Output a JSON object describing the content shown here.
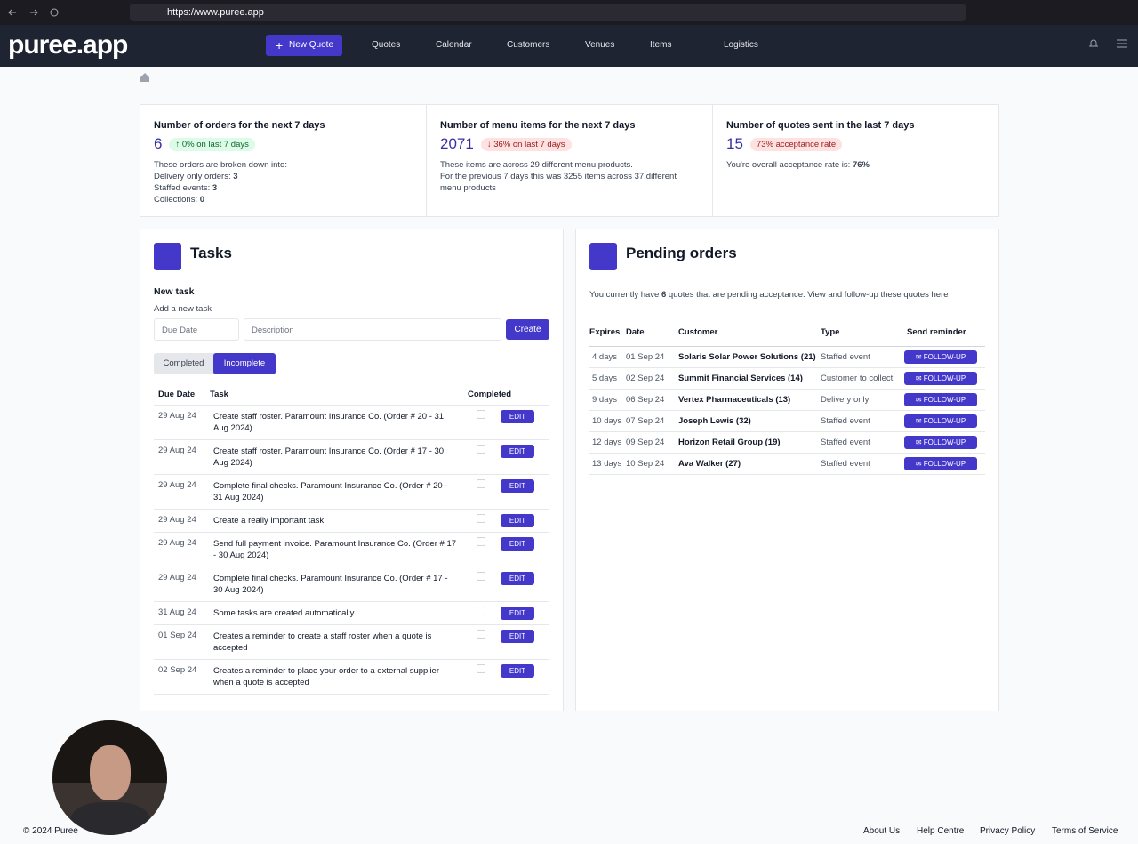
{
  "browser": {
    "url": "https://www.puree.app"
  },
  "nav": {
    "logo": "puree.app",
    "new_quote": "New Quote",
    "links": [
      "Quotes",
      "Calendar",
      "Customers",
      "Venues",
      "Items",
      "Logistics"
    ]
  },
  "stats": [
    {
      "title": "Number of orders for the next 7 days",
      "value": "6",
      "badge": "0% on last 7 days",
      "lines": [
        {
          "text": "These orders are broken down into:"
        },
        {
          "text": "Delivery only orders: ",
          "bold": "3"
        },
        {
          "text": "Staffed events: ",
          "bold": "3"
        },
        {
          "text": "Collections: ",
          "bold": "0"
        }
      ]
    },
    {
      "title": "Number of menu items for the next 7 days",
      "value": "2071",
      "badge": "36% on last 7 days",
      "lines": [
        {
          "text": "These items are across 29 different menu products."
        },
        {
          "text": "For the previous 7 days this was 3255 items across 37 different menu products"
        }
      ]
    },
    {
      "title": "Number of quotes sent in the last 7 days",
      "value": "15",
      "badge": "73% acceptance rate",
      "lines": [
        {
          "text": "You're overall acceptance rate is: ",
          "bold": "76%"
        }
      ]
    }
  ],
  "tasks": {
    "title": "Tasks",
    "new_task": "New task",
    "subtitle": "Add a new task",
    "due_placeholder": "Due Date",
    "desc_placeholder": "Description",
    "create": "Create",
    "tabs": [
      "Completed",
      "Incomplete"
    ],
    "columns": [
      "Due Date",
      "Task",
      "Completed"
    ],
    "edit": "EDIT",
    "rows": [
      [
        "29 Aug 24",
        "Create staff roster. Paramount Insurance Co. (Order # 20 - 31 Aug 2024)"
      ],
      [
        "29 Aug 24",
        "Create staff roster. Paramount Insurance Co. (Order # 17 - 30 Aug 2024)"
      ],
      [
        "29 Aug 24",
        "Complete final checks. Paramount Insurance Co. (Order # 20 - 31 Aug 2024)"
      ],
      [
        "29 Aug 24",
        "Create a really important task"
      ],
      [
        "29 Aug 24",
        "Send full payment invoice. Paramount Insurance Co. (Order # 17 - 30 Aug 2024)"
      ],
      [
        "29 Aug 24",
        "Complete final checks. Paramount Insurance Co. (Order # 17 - 30 Aug 2024)"
      ],
      [
        "31 Aug 24",
        "Some tasks are created automatically"
      ],
      [
        "01 Sep 24",
        "Creates a reminder to create a staff roster when a quote is accepted"
      ],
      [
        "02 Sep 24",
        "Creates a reminder to place your order to a external supplier when a quote is accepted"
      ]
    ]
  },
  "pending": {
    "title": "Pending orders",
    "intro_before": "You currently have ",
    "intro_count": "6",
    "intro_after": " quotes that are pending acceptance. View and follow-up these quotes here",
    "columns": [
      "Expires",
      "Date",
      "Customer",
      "Type",
      "Send reminder"
    ],
    "button": "FOLLOW-UP",
    "rows": [
      [
        "4 days",
        "01 Sep 24",
        "Solaris Solar Power Solutions (21)",
        "Staffed event"
      ],
      [
        "5 days",
        "02 Sep 24",
        "Summit Financial Services (14)",
        "Customer to collect"
      ],
      [
        "9 days",
        "06 Sep 24",
        "Vertex Pharmaceuticals (13)",
        "Delivery only"
      ],
      [
        "10 days",
        "07 Sep 24",
        "Joseph Lewis (32)",
        "Staffed event"
      ],
      [
        "12 days",
        "09 Sep 24",
        "Horizon Retail Group (19)",
        "Staffed event"
      ],
      [
        "13 days",
        "10 Sep 24",
        "Ava Walker (27)",
        "Staffed event"
      ]
    ]
  },
  "footer": {
    "copyright": "© 2024 Puree",
    "links": [
      "About Us",
      "Help Centre",
      "Privacy Policy",
      "Terms of Service"
    ]
  }
}
